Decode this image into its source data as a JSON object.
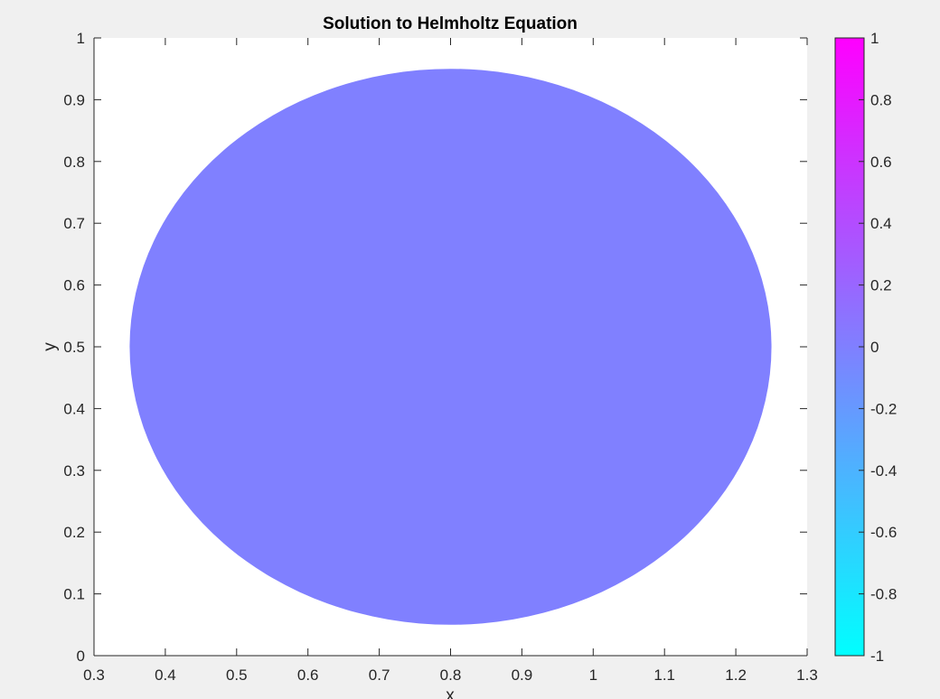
{
  "chart_data": {
    "type": "heatmap",
    "title": "Solution to Helmholtz Equation",
    "xlabel": "x",
    "ylabel": "y",
    "xlim": [
      0.3,
      1.3
    ],
    "ylim": [
      0,
      1
    ],
    "x_ticks": [
      "0.3",
      "0.4",
      "0.5",
      "0.6",
      "0.7",
      "0.8",
      "0.9",
      "1",
      "1.1",
      "1.2",
      "1.3"
    ],
    "y_ticks": [
      "0",
      "0.1",
      "0.2",
      "0.3",
      "0.4",
      "0.5",
      "0.6",
      "0.7",
      "0.8",
      "0.9",
      "1"
    ],
    "region": {
      "shape": "disk",
      "center": [
        0.8,
        0.5
      ],
      "radius": 0.45,
      "value": 0
    },
    "colorbar": {
      "limits": [
        -1,
        1
      ],
      "ticks": [
        "1",
        "0.8",
        "0.6",
        "0.4",
        "0.2",
        "0",
        "-0.2",
        "-0.4",
        "-0.6",
        "-0.8",
        "-1"
      ],
      "colormap": "cool",
      "color_low": "#00ffff",
      "color_high": "#ff00ff"
    },
    "grid": false
  }
}
